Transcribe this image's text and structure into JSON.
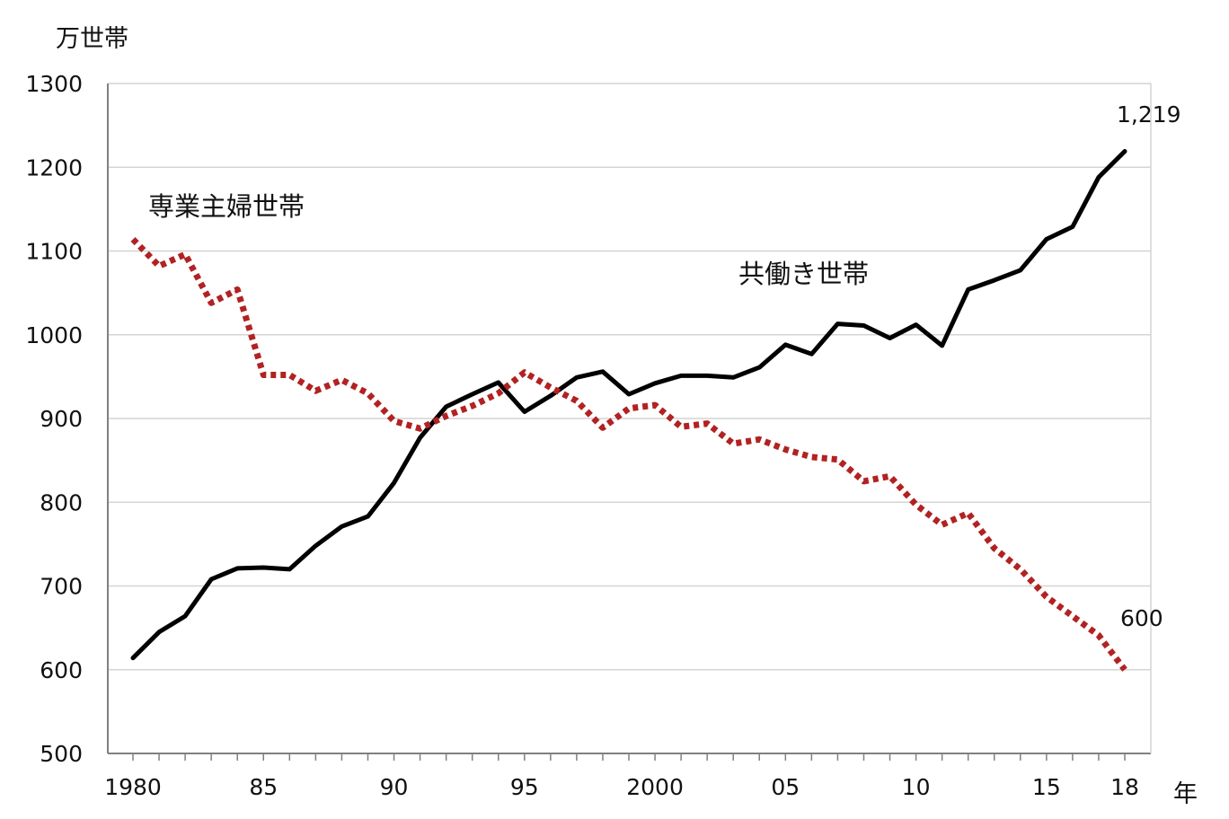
{
  "chart_data": {
    "type": "line",
    "y_unit": "万世帯",
    "x_unit": "年",
    "ylim": [
      500,
      1300
    ],
    "y_ticks": [
      "500",
      "600",
      "700",
      "800",
      "900",
      "1000",
      "1100",
      "1200",
      "1300"
    ],
    "x_tick_labels": [
      "1980",
      "85",
      "90",
      "95",
      "2000",
      "05",
      "10",
      "15",
      "18"
    ],
    "grid": true,
    "x": [
      1980,
      1981,
      1982,
      1983,
      1984,
      1985,
      1986,
      1987,
      1988,
      1989,
      1990,
      1991,
      1992,
      1993,
      1994,
      1995,
      1996,
      1997,
      1998,
      1999,
      2000,
      2001,
      2002,
      2003,
      2004,
      2005,
      2006,
      2007,
      2008,
      2009,
      2010,
      2011,
      2012,
      2013,
      2014,
      2015,
      2016,
      2017,
      2018
    ],
    "series": [
      {
        "name": "共働き世帯",
        "color": "#000000",
        "style": "solid",
        "end_label": "1,219",
        "values": [
          614,
          645,
          664,
          708,
          721,
          722,
          720,
          748,
          771,
          783,
          823,
          877,
          914,
          929,
          943,
          908,
          927,
          949,
          956,
          929,
          942,
          951,
          951,
          949,
          961,
          988,
          977,
          1013,
          1011,
          996,
          1012,
          987,
          1054,
          1065,
          1077,
          1114,
          1129,
          1188,
          1219
        ]
      },
      {
        "name": "専業主婦世帯",
        "color": "#b22222",
        "style": "dotted",
        "end_label": "600",
        "values": [
          1114,
          1082,
          1096,
          1038,
          1054,
          952,
          952,
          933,
          946,
          930,
          897,
          888,
          903,
          915,
          930,
          955,
          937,
          921,
          889,
          912,
          916,
          890,
          894,
          870,
          875,
          863,
          854,
          851,
          825,
          831,
          797,
          773,
          787,
          745,
          720,
          687,
          664,
          641,
          600
        ]
      }
    ]
  }
}
